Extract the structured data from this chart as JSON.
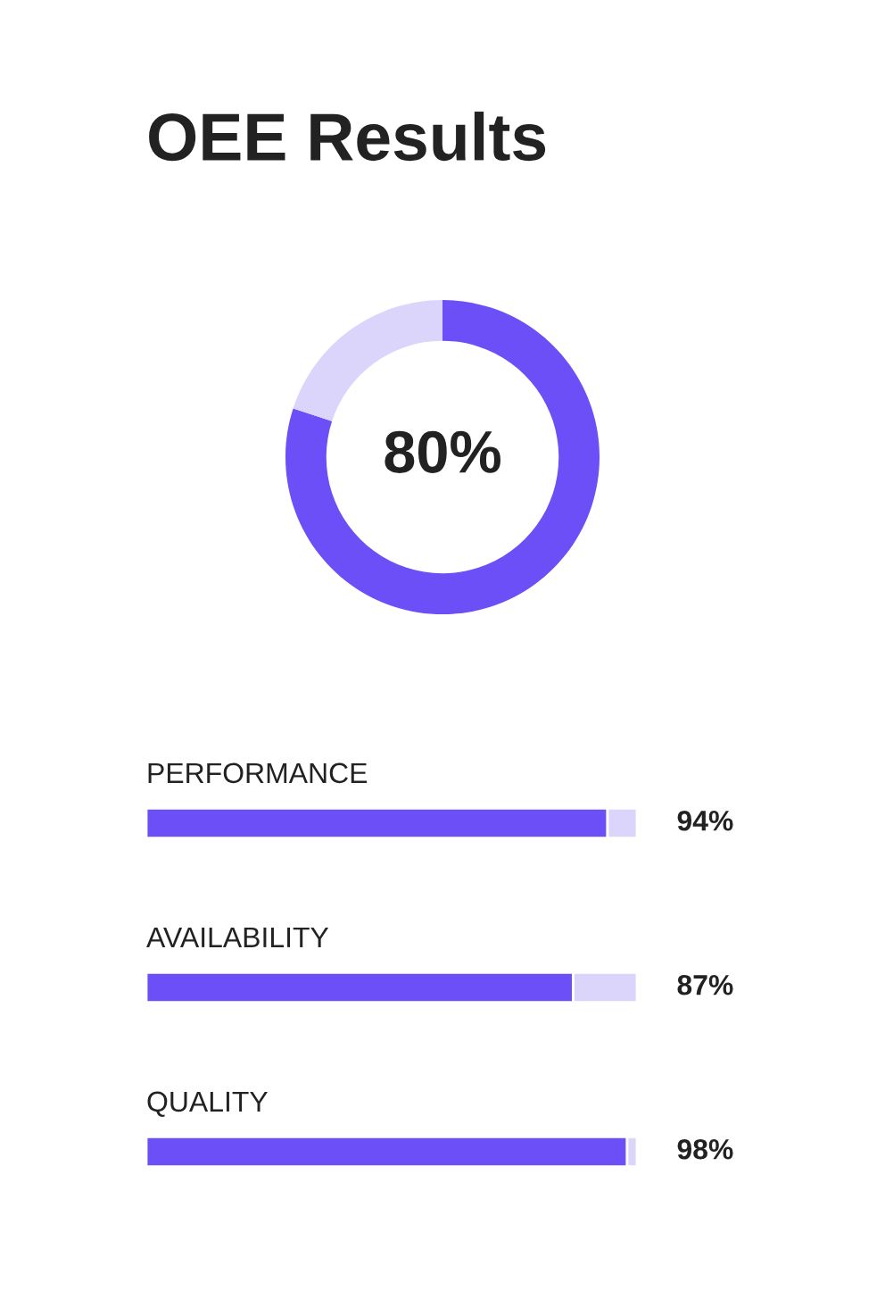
{
  "chart_data": [
    {
      "type": "donut",
      "title": "OEE Results",
      "categories": [
        null,
        null
      ],
      "values": [
        80,
        20
      ],
      "colors": [
        "#6c4ff6",
        "#dcd5fb"
      ],
      "value_labels": [
        "80%",
        null
      ]
    },
    {
      "type": "bar",
      "orientation": "horizontal",
      "stacked": true,
      "categories": [
        "PERFORMANCE",
        "AVAILABILITY",
        "QUALITY"
      ],
      "series": [
        {
          "color": "#6c4ff6",
          "values": [
            94,
            87,
            98
          ],
          "value_labels": [
            "94%",
            "87%",
            "98%"
          ]
        },
        {
          "color": "#dcd5fb",
          "values": [
            6,
            13,
            2
          ]
        }
      ],
      "xlim": [
        0,
        100
      ],
      "tick_labels": false
    }
  ]
}
